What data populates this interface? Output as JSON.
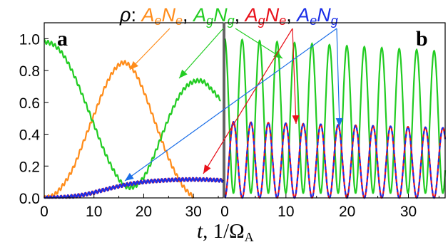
{
  "legend": {
    "prefix": "ρ",
    "colon": ":",
    "comma": ",",
    "entries": [
      {
        "label_a": "A",
        "sub_a": "e",
        "label_b": "N",
        "sub_b": "e",
        "color": "#ff8c1a"
      },
      {
        "label_a": "A",
        "sub_a": "g",
        "label_b": "N",
        "sub_b": "g",
        "color": "#22cc22"
      },
      {
        "label_a": "A",
        "sub_a": "g",
        "label_b": "N",
        "sub_b": "e",
        "color": "#e8101a"
      },
      {
        "label_a": "A",
        "sub_a": "e",
        "label_b": "N",
        "sub_b": "g",
        "color": "#1a2ee8"
      }
    ]
  },
  "xlabel": {
    "var": "t",
    "sep": ",",
    "unit": "1/Ω",
    "unit_sub": "A"
  },
  "panels": [
    {
      "label": "a",
      "x_ticks": [
        "0",
        "10",
        "20",
        "30"
      ],
      "y_ticks": [
        "0.0",
        "0.2",
        "0.4",
        "0.6",
        "0.8",
        "1.0"
      ]
    },
    {
      "label": "b",
      "x_ticks": [
        "0",
        "10",
        "20",
        "30"
      ],
      "y_ticks": []
    }
  ],
  "chart_data": [
    {
      "type": "line",
      "panel": "a",
      "xlim": [
        0,
        36
      ],
      "ylim": [
        0,
        1.1
      ],
      "x_ticks": [
        0,
        10,
        20,
        30
      ],
      "y_ticks": [
        0.0,
        0.2,
        0.4,
        0.6,
        0.8,
        1.0
      ],
      "grid": false,
      "series": [
        {
          "name": "AeNe",
          "color": "#ff8c1a",
          "x": [
            0,
            2,
            4,
            6,
            8,
            10,
            12,
            14,
            16,
            18,
            20,
            22,
            24,
            26,
            28,
            30
          ],
          "y": [
            0.0,
            0.02,
            0.09,
            0.2,
            0.36,
            0.52,
            0.68,
            0.8,
            0.85,
            0.8,
            0.67,
            0.5,
            0.33,
            0.18,
            0.07,
            0.01
          ]
        },
        {
          "name": "AgNg",
          "color": "#22cc22",
          "x": [
            0,
            2,
            4,
            6,
            8,
            10,
            12,
            14,
            16,
            18,
            20,
            22,
            24,
            26,
            28,
            30,
            32,
            34,
            35.5
          ],
          "y": [
            0.98,
            0.96,
            0.89,
            0.77,
            0.62,
            0.46,
            0.3,
            0.17,
            0.08,
            0.07,
            0.13,
            0.26,
            0.42,
            0.57,
            0.68,
            0.73,
            0.73,
            0.67,
            0.62
          ]
        },
        {
          "name": "AgNe",
          "color": "#e8101a",
          "x": [
            0,
            4,
            8,
            12,
            16,
            20,
            24,
            28,
            32,
            36
          ],
          "y": [
            0.0,
            0.005,
            0.02,
            0.05,
            0.08,
            0.1,
            0.11,
            0.115,
            0.115,
            0.11
          ]
        },
        {
          "name": "AeNg",
          "color": "#1a2ee8",
          "x": [
            0,
            4,
            8,
            12,
            16,
            20,
            24,
            28,
            32,
            36
          ],
          "y": [
            0.0,
            0.005,
            0.02,
            0.05,
            0.08,
            0.1,
            0.11,
            0.115,
            0.115,
            0.11
          ]
        }
      ]
    },
    {
      "type": "line",
      "panel": "b",
      "xlim": [
        0,
        36
      ],
      "ylim": [
        0,
        1.1
      ],
      "x_ticks": [
        0,
        10,
        20,
        30
      ],
      "grid": false,
      "series": [
        {
          "name": "AgNg",
          "color": "#22cc22",
          "shape": "oscillation",
          "period": 2.85,
          "max": 1.0,
          "max_end": 0.92,
          "min": 0.03,
          "phase_start": "max"
        },
        {
          "name": "AgNe",
          "color": "#e8101a",
          "shape": "oscillation",
          "period": 2.85,
          "max": 0.48,
          "max_end": 0.44,
          "min": 0.0,
          "phase_start": "min"
        },
        {
          "name": "AeNg",
          "color": "#1a2ee8",
          "shape": "oscillation",
          "period": 2.85,
          "max": 0.48,
          "max_end": 0.44,
          "min": 0.0,
          "phase_start": "min",
          "dashed": true
        }
      ]
    }
  ]
}
